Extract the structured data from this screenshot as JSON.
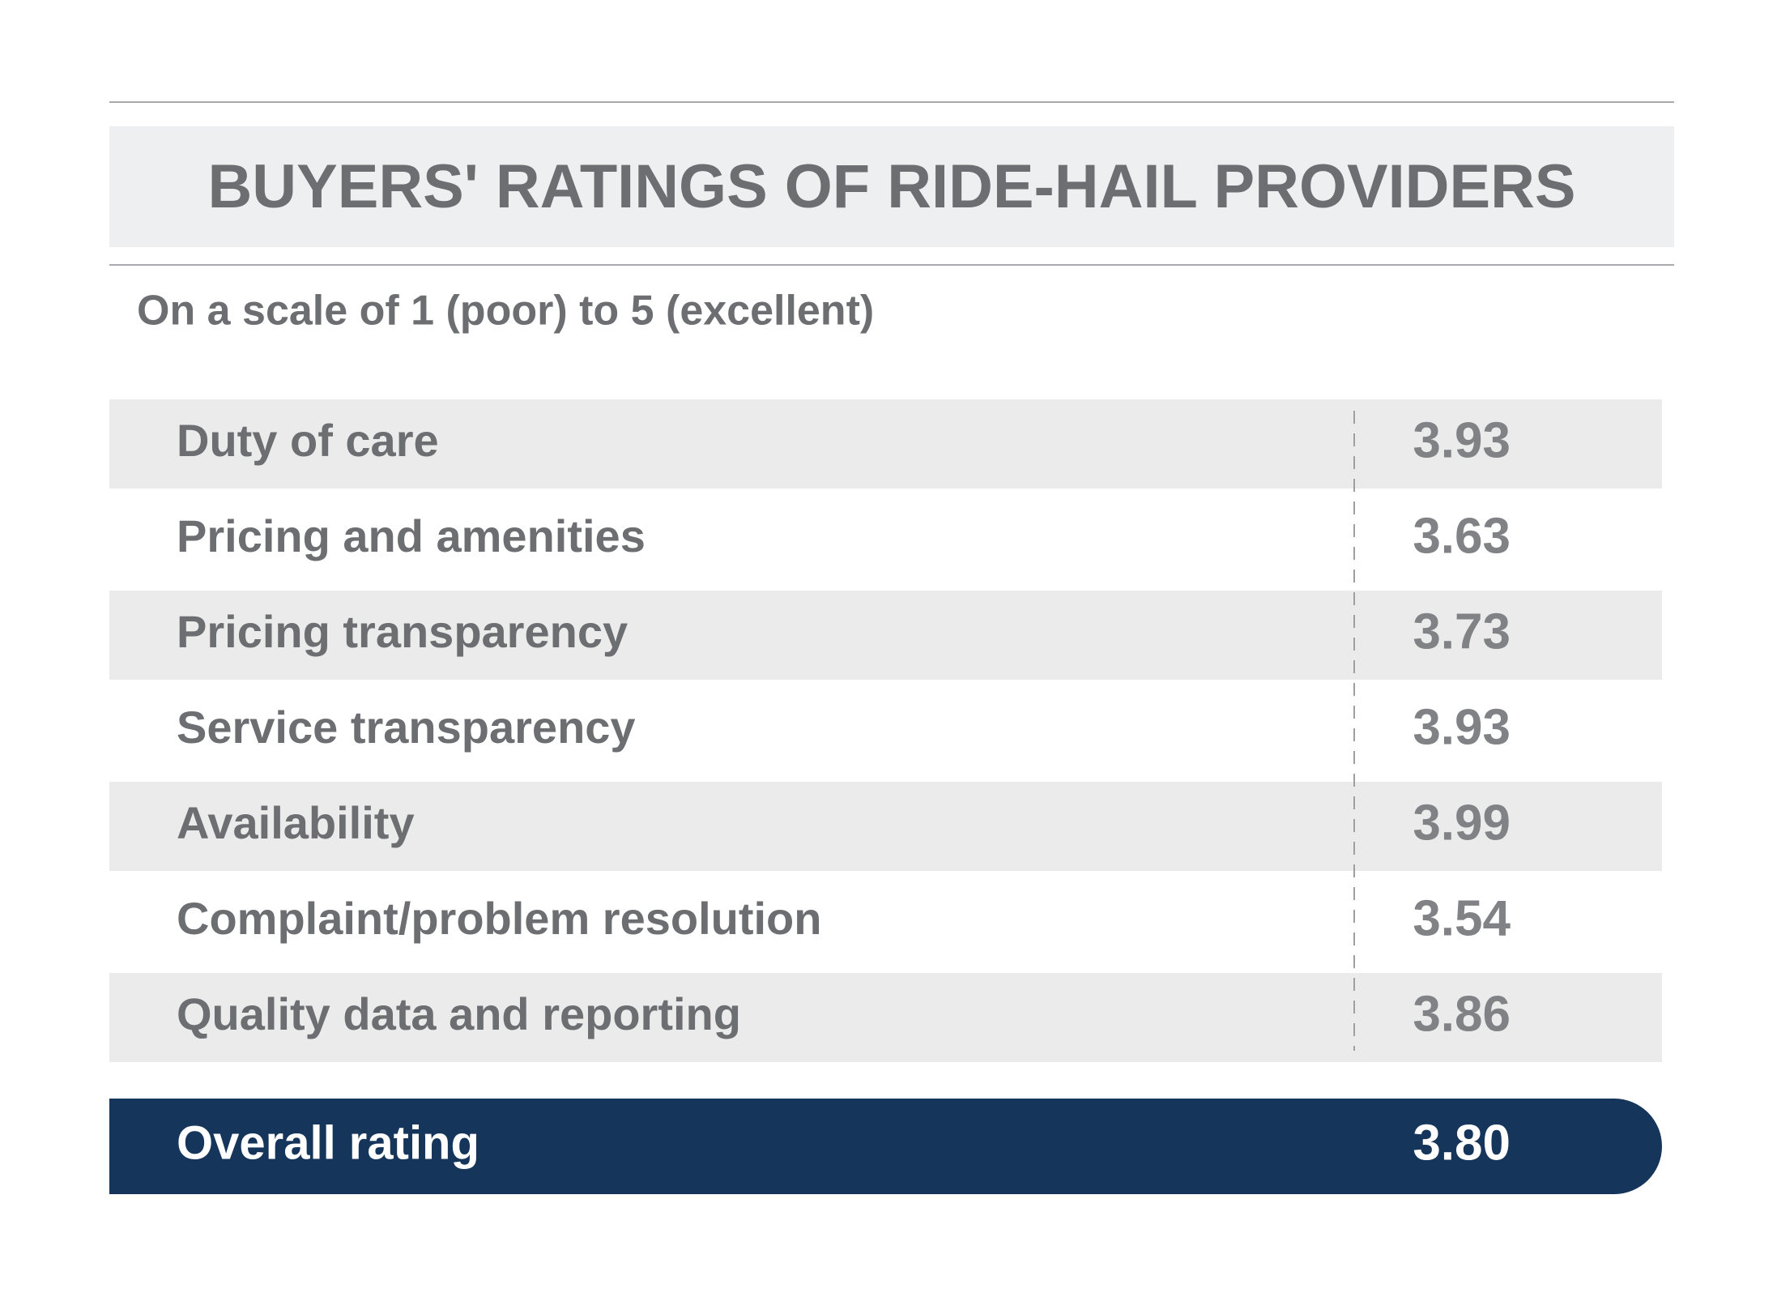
{
  "header": {
    "title": "BUYERS' RATINGS OF RIDE-HAIL PROVIDERS",
    "subtitle": "On a scale of 1 (poor) to 5 (excellent)"
  },
  "table": {
    "rows": [
      [
        "Duty of care",
        "3.93"
      ],
      [
        "Pricing and amenities",
        "3.63"
      ],
      [
        "Pricing transparency",
        "3.73"
      ],
      [
        "Service transparency",
        "3.93"
      ],
      [
        "Availability",
        "3.99"
      ],
      [
        "Complaint/problem resolution",
        "3.54"
      ],
      [
        "Quality data and reporting",
        "3.86"
      ]
    ],
    "overall": [
      "Overall rating",
      "3.80"
    ]
  }
}
